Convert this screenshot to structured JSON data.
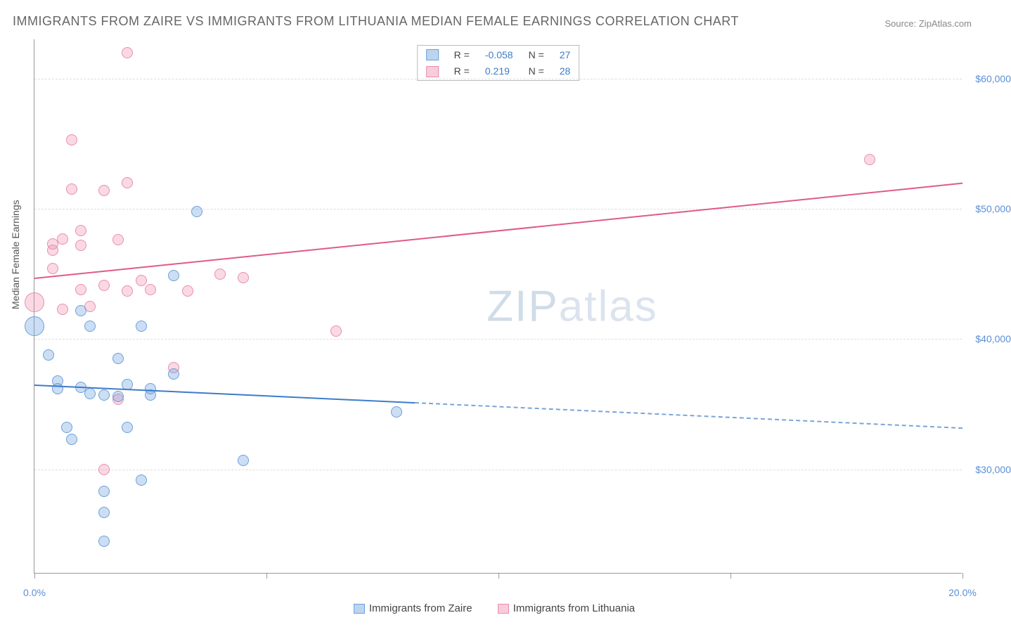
{
  "title": "IMMIGRANTS FROM ZAIRE VS IMMIGRANTS FROM LITHUANIA MEDIAN FEMALE EARNINGS CORRELATION CHART",
  "source_label": "Source: ",
  "source_name": "ZipAtlas.com",
  "ylabel": "Median Female Earnings",
  "watermark_bold": "ZIP",
  "watermark_light": "atlas",
  "chart": {
    "type": "scatter",
    "background_color": "#ffffff",
    "grid_color": "#dddddd",
    "axis_color": "#999999",
    "xlim": [
      0,
      20
    ],
    "ylim": [
      22000,
      63000
    ],
    "xticks": [
      0,
      5,
      10,
      15,
      20
    ],
    "xtick_labels": {
      "0": "0.0%",
      "20": "20.0%"
    },
    "yticks": [
      30000,
      40000,
      50000,
      60000
    ],
    "ytick_labels": {
      "30000": "$30,000",
      "40000": "$40,000",
      "50000": "$50,000",
      "60000": "$60,000"
    },
    "title_fontsize": 18,
    "title_color": "#666666",
    "label_fontsize": 14,
    "label_color": "#555555",
    "tick_color": "#5b8fd6",
    "point_radius": 8,
    "point_radius_large": 14,
    "line_width_trend": 2.5
  },
  "legend_top": {
    "r_label": "R = ",
    "n_label": "N = ",
    "rows": [
      {
        "swatch": "blue",
        "r": "-0.058",
        "n": "27"
      },
      {
        "swatch": "pink",
        "r": "0.219",
        "n": "28"
      }
    ]
  },
  "bottom_legend": [
    {
      "swatch": "blue",
      "label": "Immigrants from Zaire"
    },
    {
      "swatch": "pink",
      "label": "Immigrants from Lithuania"
    }
  ],
  "series": {
    "zaire": {
      "color_fill": "rgba(108,160,220,0.35)",
      "color_stroke": "#6ca0dc",
      "points": [
        {
          "x": 0.0,
          "y": 41000,
          "r": 14
        },
        {
          "x": 0.3,
          "y": 38800
        },
        {
          "x": 0.5,
          "y": 36800
        },
        {
          "x": 0.5,
          "y": 36200
        },
        {
          "x": 0.7,
          "y": 33200
        },
        {
          "x": 0.8,
          "y": 32300
        },
        {
          "x": 1.0,
          "y": 36300
        },
        {
          "x": 1.0,
          "y": 42200
        },
        {
          "x": 1.2,
          "y": 41000
        },
        {
          "x": 1.2,
          "y": 35800
        },
        {
          "x": 1.5,
          "y": 28300
        },
        {
          "x": 1.5,
          "y": 24500
        },
        {
          "x": 1.5,
          "y": 26700
        },
        {
          "x": 1.5,
          "y": 35700
        },
        {
          "x": 1.8,
          "y": 38500
        },
        {
          "x": 1.8,
          "y": 35600
        },
        {
          "x": 2.0,
          "y": 33200
        },
        {
          "x": 2.0,
          "y": 36500
        },
        {
          "x": 2.3,
          "y": 29200
        },
        {
          "x": 2.3,
          "y": 41000
        },
        {
          "x": 2.5,
          "y": 35700
        },
        {
          "x": 2.5,
          "y": 36200
        },
        {
          "x": 3.0,
          "y": 44900
        },
        {
          "x": 3.0,
          "y": 37300
        },
        {
          "x": 3.5,
          "y": 49800
        },
        {
          "x": 4.5,
          "y": 30700
        },
        {
          "x": 7.8,
          "y": 34400
        }
      ],
      "trend": {
        "x1": 0,
        "y1": 36500,
        "x2": 20,
        "y2": 33200,
        "solid_until_x": 8.2
      }
    },
    "lithuania": {
      "color_fill": "rgba(240,128,160,0.30)",
      "color_stroke": "#e78fb0",
      "points": [
        {
          "x": 0.0,
          "y": 42800,
          "r": 14
        },
        {
          "x": 0.4,
          "y": 47300
        },
        {
          "x": 0.4,
          "y": 46800
        },
        {
          "x": 0.4,
          "y": 45400
        },
        {
          "x": 0.6,
          "y": 42300
        },
        {
          "x": 0.6,
          "y": 47700
        },
        {
          "x": 0.8,
          "y": 55300
        },
        {
          "x": 0.8,
          "y": 51500
        },
        {
          "x": 1.0,
          "y": 43800
        },
        {
          "x": 1.0,
          "y": 47200
        },
        {
          "x": 1.0,
          "y": 48300
        },
        {
          "x": 1.2,
          "y": 42500
        },
        {
          "x": 1.5,
          "y": 30000
        },
        {
          "x": 1.5,
          "y": 51400
        },
        {
          "x": 1.5,
          "y": 44100
        },
        {
          "x": 1.8,
          "y": 47600
        },
        {
          "x": 1.8,
          "y": 35400
        },
        {
          "x": 2.0,
          "y": 43700
        },
        {
          "x": 2.0,
          "y": 52000
        },
        {
          "x": 2.0,
          "y": 62000
        },
        {
          "x": 2.3,
          "y": 44500
        },
        {
          "x": 2.5,
          "y": 43800
        },
        {
          "x": 3.0,
          "y": 37800
        },
        {
          "x": 3.3,
          "y": 43700
        },
        {
          "x": 4.0,
          "y": 45000
        },
        {
          "x": 4.5,
          "y": 44700
        },
        {
          "x": 6.5,
          "y": 40600
        },
        {
          "x": 18.0,
          "y": 53800
        }
      ],
      "trend": {
        "x1": 0,
        "y1": 44700,
        "x2": 20,
        "y2": 52000,
        "solid_until_x": 20
      }
    }
  }
}
